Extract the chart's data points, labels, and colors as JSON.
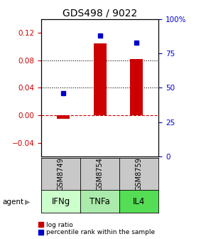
{
  "title": "GDS498 / 9022",
  "samples": [
    "GSM8749",
    "GSM8754",
    "GSM8759"
  ],
  "agents": [
    "IFNg",
    "TNFa",
    "IL4"
  ],
  "log_ratios": [
    -0.005,
    0.105,
    0.082
  ],
  "percentile_ranks_pct": [
    46,
    88,
    83
  ],
  "left_ylim": [
    -0.06,
    0.14
  ],
  "left_yticks": [
    -0.04,
    0.0,
    0.04,
    0.08,
    0.12
  ],
  "right_yticks_pct": [
    0,
    25,
    50,
    75,
    100
  ],
  "right_yticklabels": [
    "0",
    "25",
    "50",
    "75",
    "100%"
  ],
  "dotted_lines": [
    0.04,
    0.08
  ],
  "bar_color": "#cc0000",
  "dot_color": "#0000cc",
  "zero_line_color": "#cc0000",
  "background_color": "#ffffff",
  "agent_colors": [
    "#ccffcc",
    "#aaeaaa",
    "#55dd55"
  ],
  "sample_bg": "#c8c8c8",
  "bar_width": 0.35,
  "title_fontsize": 10,
  "tick_fontsize": 7.5,
  "legend_fontsize": 6.5,
  "agent_fontsize": 8.5,
  "sample_fontsize": 7
}
